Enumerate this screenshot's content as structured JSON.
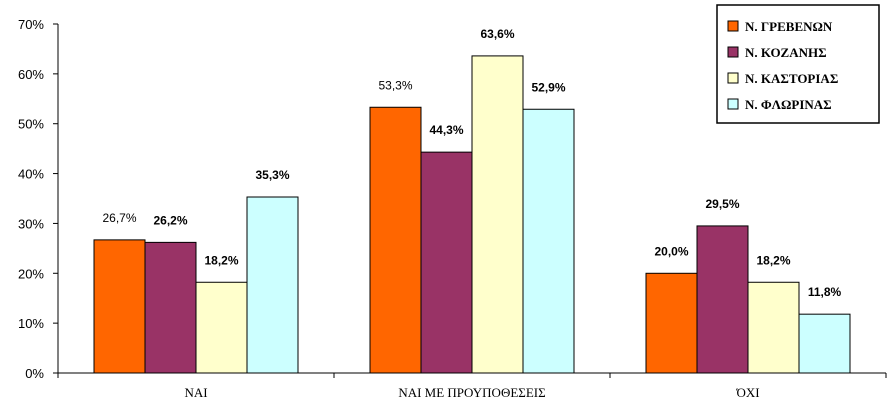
{
  "chart_data": {
    "type": "bar",
    "categories": [
      "ΝΑΙ",
      "ΝΑΙ ΜΕ ΠΡΟΥΠΟΘΕΣΕΙΣ",
      "ΌΧΙ"
    ],
    "series": [
      {
        "name": "Ν. ΓΡΕΒΕΝΩΝ",
        "color": "#ff6600",
        "values": [
          26.7,
          53.3,
          20.0
        ],
        "labels": [
          "26,7%",
          "53,3%",
          "20,0%"
        ],
        "label_bold": [
          false,
          false,
          true
        ]
      },
      {
        "name": "Ν. ΚΟΖΑΝΗΣ",
        "color": "#993366",
        "values": [
          26.2,
          44.3,
          29.5
        ],
        "labels": [
          "26,2%",
          "44,3%",
          "29,5%"
        ],
        "label_bold": [
          true,
          true,
          true
        ]
      },
      {
        "name": "Ν. ΚΑΣΤΟΡΙΑΣ",
        "color": "#ffffcc",
        "values": [
          18.2,
          63.6,
          18.2
        ],
        "labels": [
          "18,2%",
          "63,6%",
          "18,2%"
        ],
        "label_bold": [
          true,
          true,
          true
        ]
      },
      {
        "name": "Ν. ΦΛΩΡΙΝΑΣ",
        "color": "#ccffff",
        "values": [
          35.3,
          52.9,
          11.8
        ],
        "labels": [
          "35,3%",
          "52,9%",
          "11,8%"
        ],
        "label_bold": [
          true,
          true,
          true
        ]
      }
    ],
    "yticks": [
      "0%",
      "10%",
      "20%",
      "30%",
      "40%",
      "50%",
      "60%",
      "70%"
    ],
    "ylim": [
      0,
      70
    ],
    "grid": false,
    "legend_position": "top-right"
  }
}
